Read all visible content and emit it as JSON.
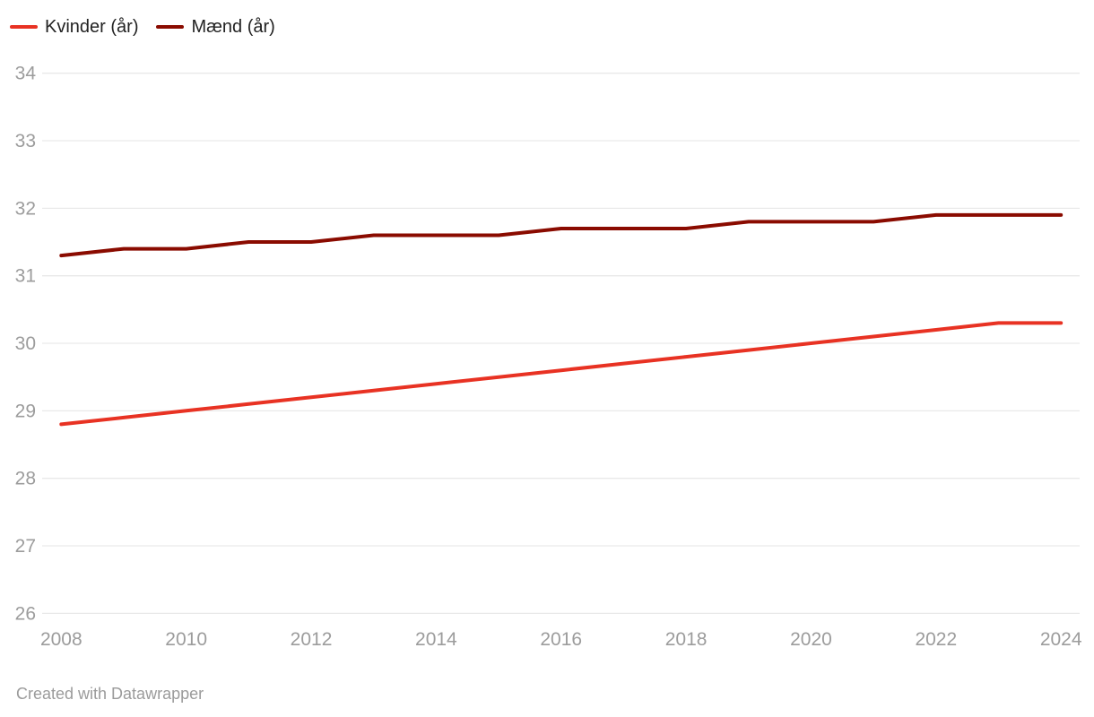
{
  "chart_data": {
    "type": "line",
    "title": "",
    "xlabel": "",
    "ylabel": "",
    "x": [
      2008,
      2009,
      2010,
      2011,
      2012,
      2013,
      2014,
      2015,
      2016,
      2017,
      2018,
      2019,
      2020,
      2021,
      2022,
      2023,
      2024
    ],
    "series": [
      {
        "name": "Kvinder (år)",
        "color": "#e83223",
        "values": [
          28.8,
          28.9,
          29.0,
          29.1,
          29.2,
          29.3,
          29.4,
          29.5,
          29.6,
          29.7,
          29.8,
          29.9,
          30.0,
          30.1,
          30.2,
          30.3,
          30.3
        ]
      },
      {
        "name": "Mænd (år)",
        "color": "#8a0b00",
        "values": [
          31.3,
          31.4,
          31.4,
          31.5,
          31.5,
          31.6,
          31.6,
          31.6,
          31.7,
          31.7,
          31.7,
          31.8,
          31.8,
          31.8,
          31.9,
          31.9,
          31.9
        ]
      }
    ],
    "ylim": [
      26,
      34
    ],
    "y_ticks": [
      34,
      33,
      32,
      31,
      30,
      29,
      28,
      27,
      26
    ],
    "x_ticks": [
      2008,
      2010,
      2012,
      2014,
      2016,
      2018,
      2020,
      2022,
      2024
    ],
    "grid": "horizontal",
    "legend_position": "top-left"
  },
  "footer": {
    "credit": "Created with Datawrapper"
  },
  "colors": {
    "background": "#ffffff",
    "grid": "#e9e9e9",
    "tick_label": "#9c9c9c",
    "legend_text": "#222222",
    "footer_text": "#9b9b9b"
  }
}
